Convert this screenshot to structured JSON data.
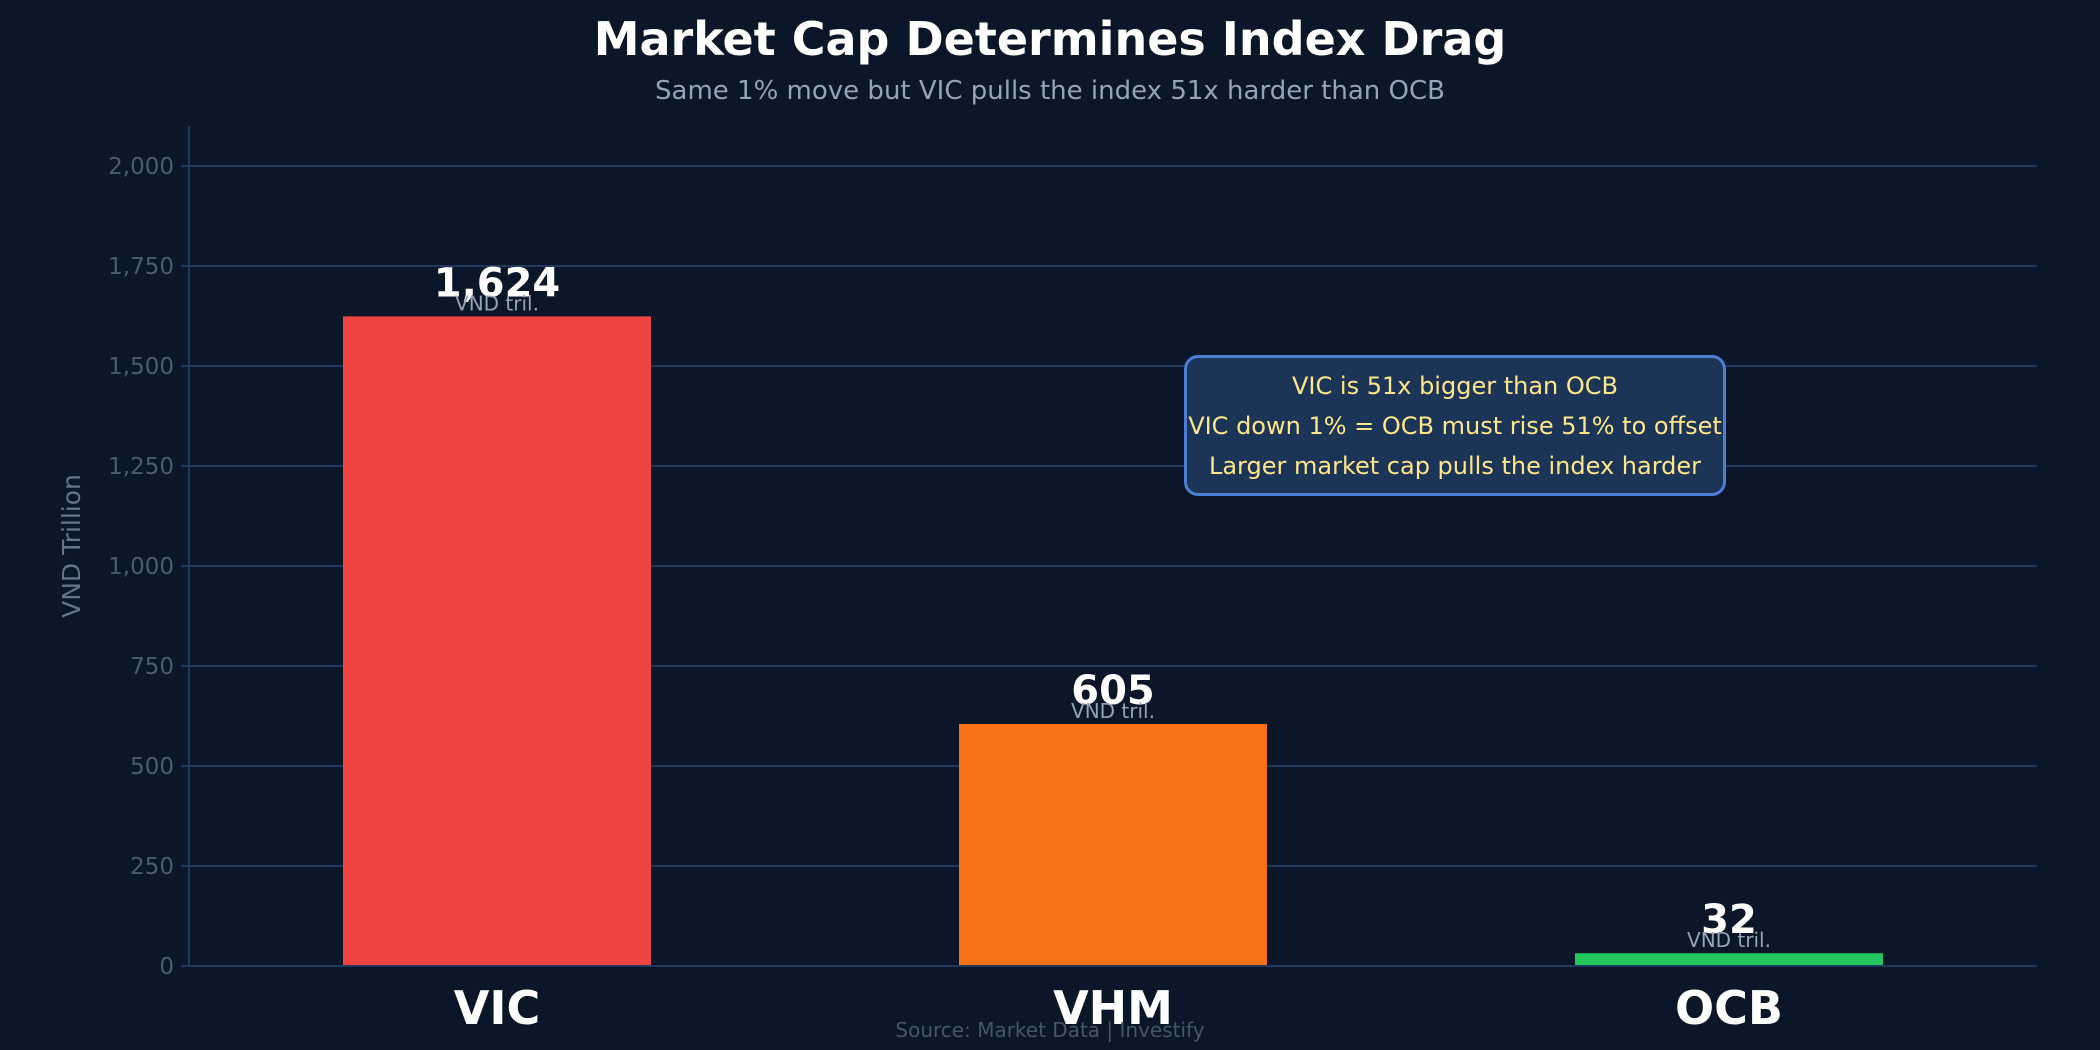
{
  "title": "Market Cap Determines Index Drag",
  "subtitle": "Same 1% move but VIC pulls the index 51x harder than OCB",
  "source": "Source: Market Data  |  Investify",
  "annotation": {
    "lines": [
      "VIC is 51x bigger than OCB",
      "VIC down 1% = OCB must rise 51% to offset",
      "Larger market cap pulls the index harder"
    ]
  },
  "colors": {
    "background": "#0b1628",
    "grid": "#1e3a5f",
    "tick_label": "#4b5b70",
    "axis_label": "#64748b",
    "value_label": "#ffffff",
    "unit_label": "#94a3b8"
  },
  "chart_data": {
    "type": "bar",
    "categories": [
      "VIC",
      "VHM",
      "OCB"
    ],
    "values": [
      1624,
      605,
      32
    ],
    "value_labels": [
      "1,624",
      "605",
      "32"
    ],
    "unit_label": "VND tril.",
    "bar_colors": [
      "#ef4444",
      "#f97316",
      "#22c55e"
    ],
    "ylabel": "VND Trillion",
    "ylim": [
      0,
      2100
    ],
    "yticks": [
      0,
      250,
      500,
      750,
      1000,
      1250,
      1500,
      1750,
      2000
    ],
    "ytick_labels": [
      "0",
      "250",
      "500",
      "750",
      "1,000",
      "1,250",
      "1,500",
      "1,750",
      "2,000"
    ],
    "grid": true
  }
}
